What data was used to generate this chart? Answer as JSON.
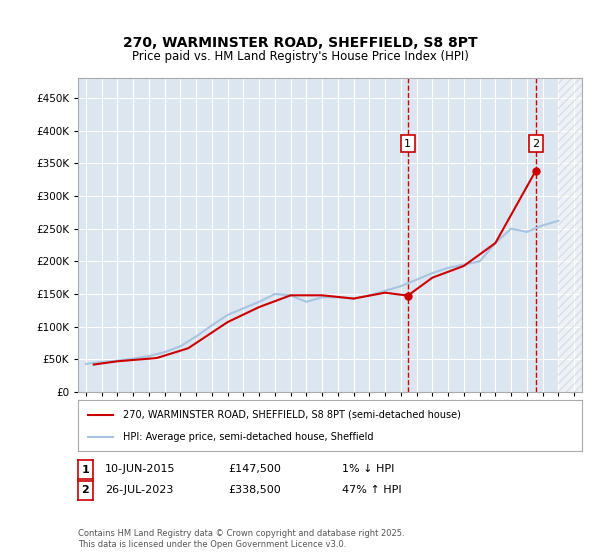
{
  "title_line1": "270, WARMINSTER ROAD, SHEFFIELD, S8 8PT",
  "title_line2": "Price paid vs. HM Land Registry's House Price Index (HPI)",
  "ylabel": "",
  "background_color": "#ffffff",
  "plot_bg_color": "#dce6f1",
  "grid_color": "#ffffff",
  "hpi_color": "#a8c4e0",
  "price_color": "#cc0000",
  "annotation1": {
    "label": "1",
    "date": "10-JUN-2015",
    "price": 147500,
    "pct": "1% ↓ HPI",
    "x_year": 2015.44
  },
  "annotation2": {
    "label": "2",
    "date": "26-JUL-2023",
    "price": 338500,
    "pct": "47% ↑ HPI",
    "x_year": 2023.56
  },
  "legend_line1": "270, WARMINSTER ROAD, SHEFFIELD, S8 8PT (semi-detached house)",
  "legend_line2": "HPI: Average price, semi-detached house, Sheffield",
  "footnote": "Contains HM Land Registry data © Crown copyright and database right 2025.\nThis data is licensed under the Open Government Licence v3.0.",
  "ylim": [
    0,
    480000
  ],
  "xlim_start": 1994.5,
  "xlim_end": 2026.5,
  "future_shade_start": 2025.0,
  "hpi_years": [
    1995,
    1996,
    1997,
    1998,
    1999,
    2000,
    2001,
    2002,
    2003,
    2004,
    2005,
    2006,
    2007,
    2008,
    2009,
    2010,
    2011,
    2012,
    2013,
    2014,
    2015,
    2016,
    2017,
    2018,
    2019,
    2020,
    2021,
    2022,
    2023,
    2024,
    2025
  ],
  "hpi_values": [
    43000,
    46000,
    48000,
    51000,
    55000,
    61000,
    70000,
    85000,
    102000,
    118000,
    128000,
    138000,
    150000,
    148000,
    138000,
    145000,
    145000,
    143000,
    148000,
    155000,
    162000,
    172000,
    182000,
    190000,
    195000,
    200000,
    228000,
    250000,
    245000,
    255000,
    262000
  ],
  "price_years": [
    1995.5,
    1997.0,
    1999.5,
    2001.5,
    2004.0,
    2006.0,
    2008.0,
    2010.0,
    2012.0,
    2014.0,
    2015.44,
    2017.0,
    2019.0,
    2021.0,
    2023.56
  ],
  "price_values": [
    42000,
    47000,
    52000,
    67000,
    107000,
    130000,
    148000,
    148000,
    143000,
    152000,
    147500,
    175000,
    193000,
    228000,
    338500
  ]
}
